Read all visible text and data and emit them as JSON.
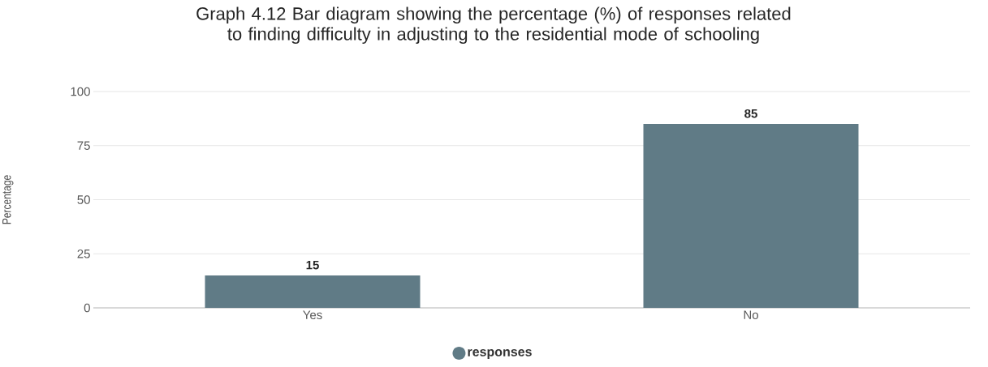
{
  "chart_data": {
    "type": "bar",
    "title": "Graph 4.12 Bar diagram showing the percentage (%) of responses related to finding difficulty in adjusting to the residential mode of schooling",
    "categories": [
      "Yes",
      "No"
    ],
    "series": [
      {
        "name": "responses",
        "color": "#607b86",
        "values": [
          15,
          85
        ]
      }
    ],
    "ylabel": "Percentage",
    "ylim": [
      0,
      100
    ],
    "yticks": [
      0,
      25,
      50,
      75,
      100
    ],
    "grid": "y",
    "legend": "bottom",
    "data_labels": true
  }
}
